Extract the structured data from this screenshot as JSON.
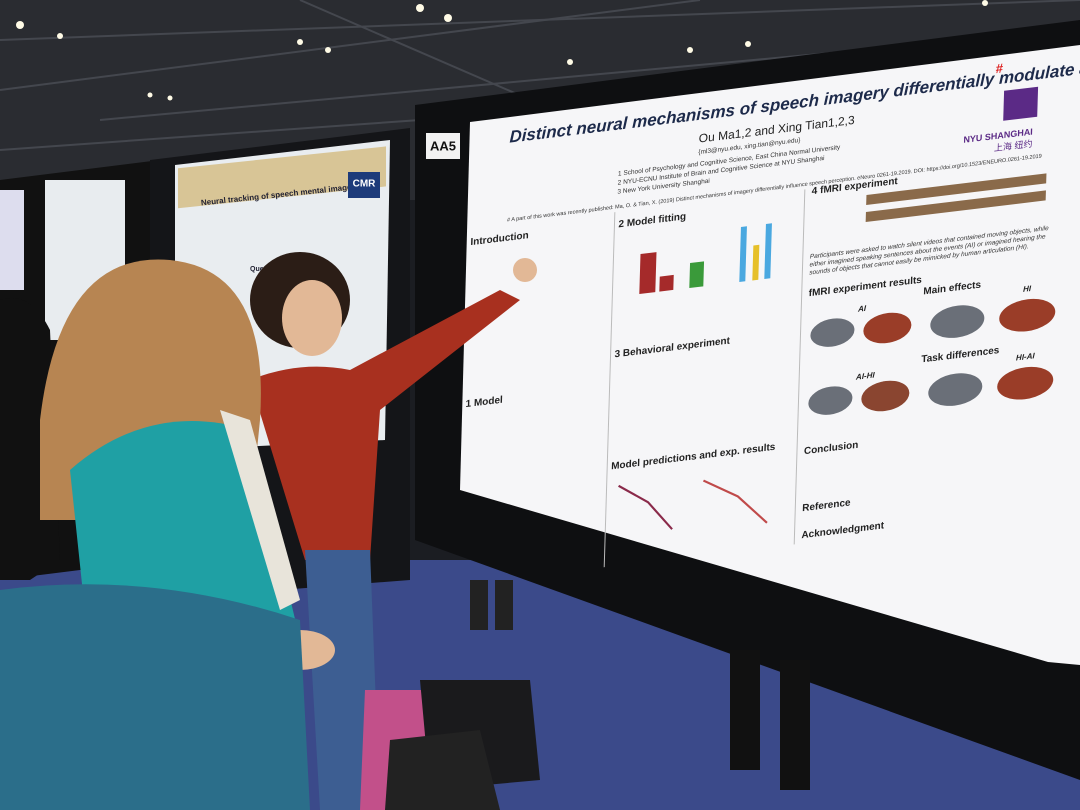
{
  "board_label": "AA5",
  "poster": {
    "title": "Distinct neural mechanisms of speech imagery differentially modulate auditory perception",
    "title_mark": "#",
    "authors": "Ou Ma1,2 and Xing Tian1,2,3",
    "email": "{ml3@nyu.edu, xing.tian@nyu.edu}",
    "affiliations": [
      "1 School of Psychology and Cognitive Science, East China Normal University",
      "2 NYU-ECNU Institute of Brain and Cognitive Science at NYU Shanghai",
      "3 New York University Shanghai"
    ],
    "note": "# A part of this work was recently published: Ma, O. & Tian, X. (2019) Distinct mechanisms of imagery differentially influence speech perception. eNeuro 0261-19.2019. DOI: https://doi.org/10.1523/ENEURO.0261-19.2019",
    "logo": {
      "latin": "NYU SHANGHAI",
      "chinese": "上海 纽约"
    },
    "sections": [
      "Introduction",
      "1 Model",
      "2 Model fitting",
      "3 Behavioral experiment",
      "Model predictions and exp. results",
      "4 fMRI experiment",
      "fMRI experiment results",
      "Main effects",
      "Task differences",
      "Conclusion",
      "Reference",
      "Acknowledgment"
    ],
    "panel_labels": [
      "AI",
      "HI",
      "AI-HI",
      "HI-AI"
    ],
    "fmri_text": "Participants were asked to watch silent videos that contained moving objects, while either imagined speaking sentences about the events (AI) or imagined hearing the sounds of objects that cannot easily be mimicked by human articulation (HI)."
  },
  "left_poster": {
    "title": "Neural tracking of speech mental imagery",
    "logo": "CMR",
    "section": "Questions"
  }
}
